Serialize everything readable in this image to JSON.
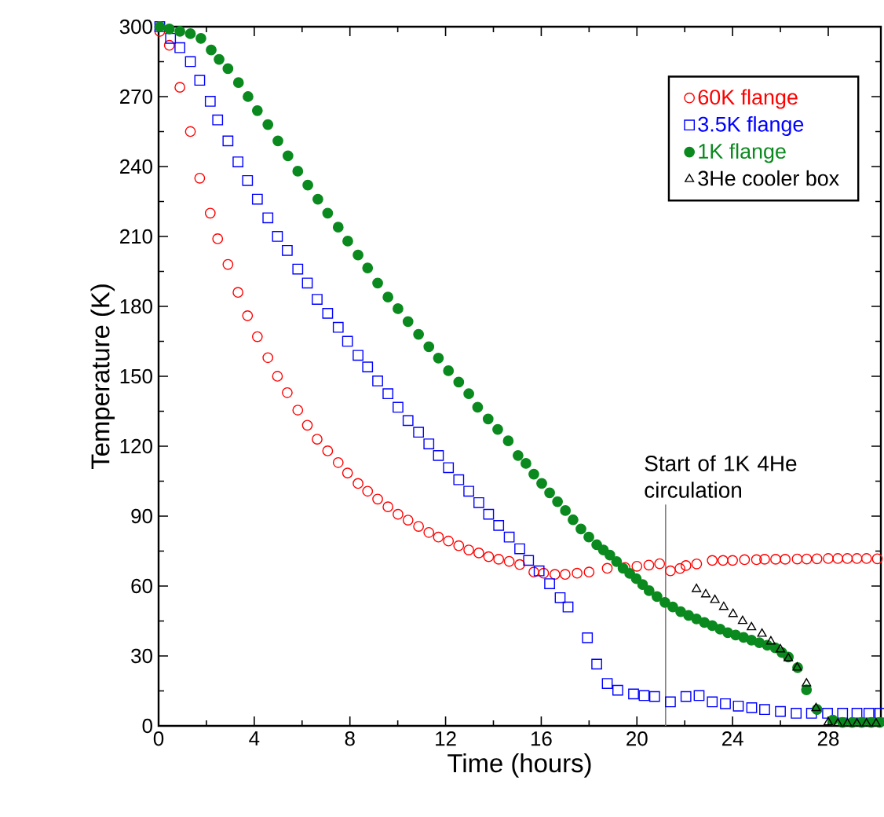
{
  "chart_data": {
    "type": "scatter",
    "xlabel": "Time (hours)",
    "ylabel": "Temperature (K)",
    "xlim": [
      0,
      30.2
    ],
    "ylim": [
      0,
      300
    ],
    "xticks": [
      0,
      4,
      8,
      12,
      16,
      20,
      24,
      28
    ],
    "yticks": [
      0,
      30,
      60,
      90,
      120,
      150,
      180,
      210,
      240,
      270,
      300
    ],
    "legend": "top right",
    "series": [
      {
        "name": "60K flange",
        "color": "#ff0000",
        "marker": "circle",
        "x": [
          0.05,
          0.45,
          0.89,
          1.33,
          1.72,
          2.16,
          2.47,
          2.9,
          3.32,
          3.72,
          4.13,
          4.57,
          4.97,
          5.38,
          5.82,
          6.22,
          6.63,
          7.07,
          7.51,
          7.9,
          8.34,
          8.74,
          9.16,
          9.59,
          10.01,
          10.43,
          10.87,
          11.3,
          11.7,
          12.12,
          12.55,
          12.97,
          13.39,
          13.8,
          14.22,
          14.66,
          15.1,
          15.69,
          16.1,
          16.57,
          17.0,
          17.5,
          18.0,
          18.76,
          19.5,
          20.0,
          20.5,
          20.95,
          21.4,
          21.8,
          22.05,
          22.5,
          23.15,
          23.6,
          24.0,
          24.5,
          25.0,
          25.34,
          25.8,
          26.2,
          26.7,
          27.1,
          27.53,
          28.0,
          28.4,
          28.8,
          29.2,
          29.6,
          30.05
        ],
        "values": [
          298,
          292,
          274,
          255,
          235,
          220,
          209,
          198,
          186,
          176,
          167,
          158,
          150,
          143,
          135.5,
          129,
          123,
          118,
          113,
          108.5,
          104,
          100.7,
          97.3,
          94,
          90.8,
          88.3,
          85.6,
          83,
          81,
          79.3,
          77.3,
          75.5,
          74.2,
          72.6,
          71.5,
          70.6,
          69.2,
          66,
          65.5,
          65,
          65,
          65.5,
          66,
          67.6,
          68,
          68.5,
          69,
          69.6,
          66.5,
          67.5,
          68.8,
          69.5,
          71,
          71,
          71,
          71.3,
          71.3,
          71.5,
          71.5,
          71.5,
          71.6,
          71.6,
          71.7,
          71.8,
          71.8,
          71.8,
          71.8,
          71.8,
          71.7
        ]
      },
      {
        "name": "3.5K flange",
        "color": "#0000ff",
        "marker": "square",
        "x": [
          0.05,
          0.5,
          0.89,
          1.33,
          1.72,
          2.16,
          2.47,
          2.9,
          3.32,
          3.72,
          4.13,
          4.57,
          4.97,
          5.38,
          5.82,
          6.22,
          6.63,
          7.07,
          7.51,
          7.9,
          8.34,
          8.74,
          9.16,
          9.59,
          10.01,
          10.43,
          10.87,
          11.3,
          11.7,
          12.12,
          12.55,
          12.97,
          13.39,
          13.8,
          14.22,
          14.66,
          15.1,
          15.47,
          15.91,
          16.35,
          16.79,
          17.12,
          17.93,
          18.32,
          18.76,
          19.2,
          19.86,
          20.3,
          20.74,
          21.4,
          22.05,
          22.6,
          23.15,
          23.7,
          24.24,
          24.8,
          25.34,
          26.0,
          26.66,
          27.3,
          27.97,
          28.6,
          29.2,
          29.7,
          30.16
        ],
        "values": [
          300,
          295,
          291,
          285,
          277,
          268,
          260,
          251,
          242,
          234,
          226,
          218,
          210,
          204,
          196,
          190,
          183,
          177,
          171,
          165,
          159,
          154,
          148,
          142.5,
          136.7,
          131,
          126,
          121,
          116,
          110.8,
          105.6,
          100.7,
          95.8,
          90.8,
          86,
          81,
          76,
          71,
          66.5,
          61,
          55,
          51,
          37.8,
          26.5,
          18.2,
          15.3,
          13.7,
          13,
          12.6,
          10.3,
          12.6,
          13,
          10.3,
          9.5,
          8.5,
          7.8,
          7,
          6.2,
          5.4,
          5.4,
          5.4,
          5.4,
          5.4,
          5.4,
          5.4
        ]
      },
      {
        "name": "1K flange",
        "color": "#0a8a1e",
        "marker": "circle",
        "x": [
          0.05,
          0.45,
          0.89,
          1.33,
          1.77,
          2.2,
          2.53,
          2.9,
          3.34,
          3.74,
          4.13,
          4.57,
          4.99,
          5.41,
          5.82,
          6.24,
          6.66,
          7.07,
          7.51,
          7.91,
          8.34,
          8.74,
          9.16,
          9.59,
          10.01,
          10.43,
          10.87,
          11.3,
          11.7,
          12.12,
          12.55,
          12.97,
          13.34,
          13.78,
          14.18,
          14.62,
          15.03,
          15.36,
          15.69,
          16.02,
          16.35,
          16.68,
          17.01,
          17.33,
          17.66,
          17.99,
          18.32,
          18.6,
          18.87,
          19.15,
          19.42,
          19.7,
          19.97,
          20.24,
          20.51,
          20.84,
          21.17,
          21.5,
          21.83,
          22.16,
          22.49,
          22.82,
          23.15,
          23.48,
          23.8,
          24.13,
          24.46,
          24.79,
          25.12,
          25.45,
          25.78,
          26.06,
          26.33,
          26.72,
          27.09,
          27.53,
          28.19,
          28.6,
          29.0,
          29.4,
          29.8,
          30.15
        ],
        "values": [
          300,
          299,
          298,
          297,
          295,
          290,
          286,
          282,
          276,
          270,
          264,
          258,
          251,
          244.6,
          238,
          232,
          226,
          220,
          214,
          208,
          202,
          196.5,
          190,
          184,
          179,
          173.5,
          168,
          162.7,
          157.8,
          152.4,
          147.5,
          142.5,
          136.7,
          131.7,
          127.2,
          122.3,
          116,
          112.6,
          108,
          104,
          100,
          96.2,
          92.4,
          88.4,
          84.5,
          81,
          77.7,
          75.5,
          73.3,
          70.5,
          67.6,
          65.4,
          63.2,
          60.6,
          58,
          55.5,
          53,
          51,
          49,
          47.4,
          45.9,
          44.4,
          43,
          41.5,
          40,
          39,
          38,
          36.8,
          35.7,
          34.6,
          33.5,
          31.5,
          29.5,
          25,
          15.5,
          7,
          2.5,
          1.5,
          1.5,
          1.5,
          1.5,
          1.5
        ]
      },
      {
        "name": "3He cooler box",
        "color": "#000000",
        "marker": "triangle",
        "x": [
          22.49,
          22.88,
          23.26,
          23.63,
          24.02,
          24.42,
          24.79,
          25.23,
          25.6,
          26.0,
          26.33,
          26.7,
          27.09,
          27.49,
          28.0,
          28.4,
          28.8,
          29.2,
          29.6,
          30.0
        ],
        "values": [
          58.7,
          56.4,
          54,
          51,
          48,
          45,
          42.3,
          39.5,
          36.2,
          32.8,
          29,
          25,
          18.2,
          7.6,
          1.5,
          1,
          1,
          1,
          1,
          1
        ]
      }
    ],
    "ref_lines": [
      {
        "axis": "x",
        "value": 21.2,
        "label": "Start of 1K 4He circulation",
        "color": "#808080"
      }
    ]
  }
}
